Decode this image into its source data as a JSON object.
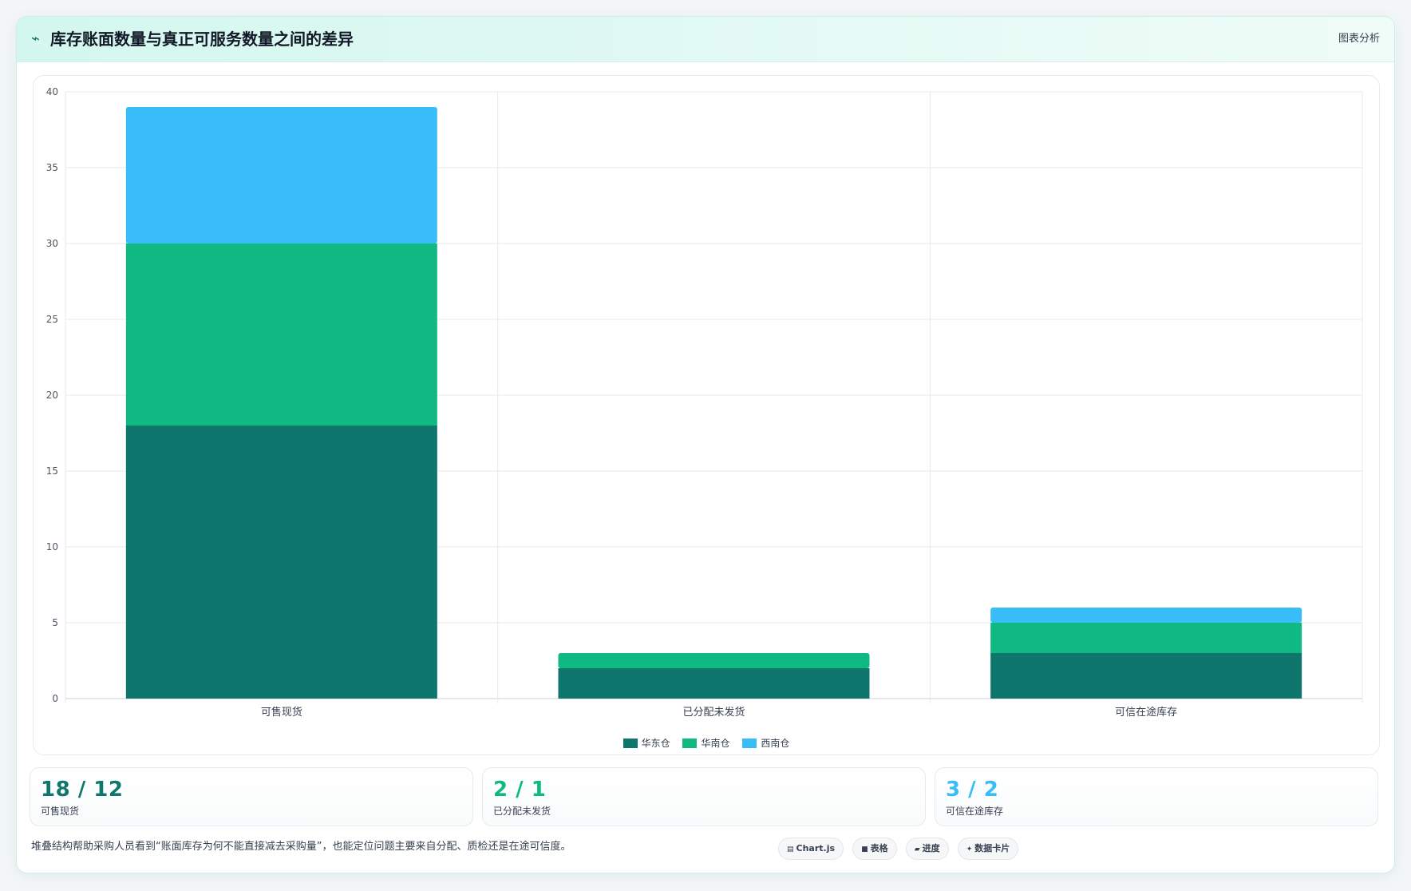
{
  "header": {
    "icon": "wave-icon",
    "title": "库存账面数量与真正可服务数量之间的差异",
    "action_label": "图表分析"
  },
  "chart_data": {
    "type": "bar",
    "stacked": true,
    "categories": [
      "可售现货",
      "已分配未发货",
      "可信在途库存"
    ],
    "series": [
      {
        "name": "华东仓",
        "color": "#0f766e",
        "values": [
          18,
          2,
          3
        ]
      },
      {
        "name": "华南仓",
        "color": "#10b981",
        "values": [
          12,
          1,
          2
        ]
      },
      {
        "name": "西南仓",
        "color": "#38bdf8",
        "values": [
          9,
          0,
          1
        ]
      }
    ],
    "ylim": [
      0,
      40
    ],
    "yticks": [
      0,
      5,
      10,
      15,
      20,
      25,
      30,
      35,
      40
    ],
    "grid": true,
    "legend_position": "bottom"
  },
  "stats": [
    {
      "value": "18 / 12",
      "label": "可售现货",
      "color": "#0f766e"
    },
    {
      "value": "2 / 1",
      "label": "已分配未发货",
      "color": "#10b981"
    },
    {
      "value": "3 / 2",
      "label": "可信在途库存",
      "color": "#38bdf8"
    }
  ],
  "footer": {
    "note": "堆叠结构帮助采购人员看到“账面库存为何不能直接减去采购量”，也能定位问题主要来自分配、质检还是在途可信度。",
    "chips": [
      {
        "icon": "chart-icon",
        "glyph": "▤",
        "label": "Chart.js"
      },
      {
        "icon": "table-icon",
        "glyph": "■",
        "label": "表格"
      },
      {
        "icon": "progress-icon",
        "glyph": "▰",
        "label": "进度"
      },
      {
        "icon": "sparkle-icon",
        "glyph": "✦",
        "label": "数据卡片"
      }
    ]
  }
}
